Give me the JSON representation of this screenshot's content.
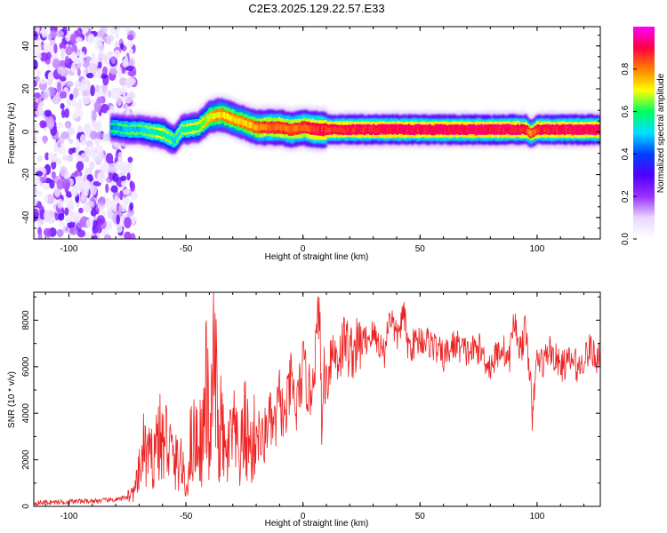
{
  "figure": {
    "title": "C2E3.2025.129.22.57.E33"
  },
  "chart_data": [
    {
      "type": "heatmap",
      "xlabel": "Height of straight line (km)",
      "ylabel": "Frequency (Hz)",
      "xlim": [
        -115,
        127
      ],
      "ylim": [
        -50,
        49
      ],
      "x_ticks": [
        -100,
        -50,
        0,
        50,
        100
      ],
      "y_ticks": [
        -40,
        -20,
        0,
        20,
        40
      ],
      "grid": false,
      "colorbar": {
        "label": "Normalized spectral amplitude",
        "range": [
          0,
          1
        ],
        "ticks": [
          0.0,
          0.2,
          0.4,
          0.6,
          0.8
        ],
        "colors": [
          "#ffffff",
          "#e8d8ff",
          "#9b30ff",
          "#5000ff",
          "#0040ff",
          "#00e0ff",
          "#00ff60",
          "#ffff00",
          "#ff8000",
          "#ff0040",
          "#ff00ff"
        ]
      },
      "ridge": {
        "x": [
          -82,
          -75,
          -70,
          -65,
          -60,
          -55,
          -52,
          -45,
          -40,
          -35,
          -30,
          -25,
          -20,
          -15,
          -10,
          -5,
          0,
          5,
          10,
          15,
          20,
          30,
          40,
          50,
          60,
          70,
          80,
          90,
          95,
          97,
          100,
          110,
          120,
          127
        ],
        "freq": [
          2,
          1,
          1,
          0,
          -1,
          -4,
          1,
          2,
          7,
          8,
          6,
          4,
          2,
          2,
          2,
          1,
          2,
          1,
          1,
          1,
          1,
          1,
          1,
          1,
          1,
          1,
          1,
          1,
          1,
          -1,
          1,
          1,
          1,
          1
        ],
        "amplitude": [
          0.45,
          0.5,
          0.5,
          0.55,
          0.6,
          0.5,
          0.55,
          0.6,
          0.7,
          0.75,
          0.75,
          0.75,
          0.8,
          0.85,
          0.85,
          0.85,
          0.85,
          0.9,
          0.9,
          0.9,
          0.92,
          0.92,
          0.93,
          0.93,
          0.93,
          0.93,
          0.93,
          0.93,
          0.9,
          0.8,
          0.9,
          0.93,
          0.93,
          0.93
        ]
      },
      "noise_region": {
        "x_range": [
          -115,
          -78
        ],
        "freq_range": [
          -50,
          49
        ],
        "amplitude_range": [
          0.05,
          0.3
        ]
      }
    },
    {
      "type": "line",
      "xlabel": "Height of straight line (km)",
      "ylabel": "SNR (10 * v/v)",
      "xlim": [
        -115,
        127
      ],
      "ylim": [
        0,
        9200
      ],
      "x_ticks": [
        -100,
        -50,
        0,
        50,
        100
      ],
      "y_ticks": [
        0,
        2000,
        4000,
        6000,
        8000
      ],
      "grid": false,
      "color": "#ee2222",
      "series": [
        {
          "x": [
            -115,
            -100,
            -85,
            -78,
            -72,
            -70,
            -68,
            -65,
            -62,
            -60,
            -58,
            -55,
            -52,
            -50,
            -48,
            -45,
            -43,
            -41,
            -40,
            -38,
            -36,
            -35,
            -33,
            -30,
            -27,
            -25,
            -22,
            -20,
            -17,
            -15,
            -12,
            -10,
            -8,
            -5,
            -3,
            0,
            3,
            6,
            7,
            8,
            9,
            10,
            12,
            15,
            18,
            20,
            25,
            30,
            35,
            37,
            40,
            43,
            45,
            50,
            55,
            60,
            65,
            70,
            75,
            80,
            85,
            88,
            90,
            93,
            95,
            97,
            98,
            99,
            100,
            103,
            105,
            110,
            115,
            118,
            120,
            123,
            125,
            127
          ],
          "y": [
            150,
            200,
            250,
            300,
            600,
            1400,
            2500,
            1900,
            3100,
            2600,
            3000,
            1800,
            2000,
            500,
            2700,
            3000,
            2700,
            5500,
            1800,
            6600,
            2500,
            3500,
            1900,
            3200,
            2000,
            3400,
            2300,
            3300,
            2600,
            3800,
            3300,
            4800,
            3500,
            5500,
            4000,
            6000,
            4700,
            7200,
            9100,
            3000,
            6000,
            5200,
            6700,
            6400,
            7200,
            6600,
            7000,
            7400,
            6600,
            8400,
            7200,
            8300,
            6800,
            7200,
            7000,
            6400,
            7000,
            6600,
            6800,
            6000,
            6900,
            6200,
            8000,
            6700,
            7600,
            5800,
            3300,
            5500,
            6300,
            6200,
            6800,
            6000,
            6300,
            5900,
            6400,
            6800,
            6300,
            6700
          ]
        }
      ]
    }
  ]
}
